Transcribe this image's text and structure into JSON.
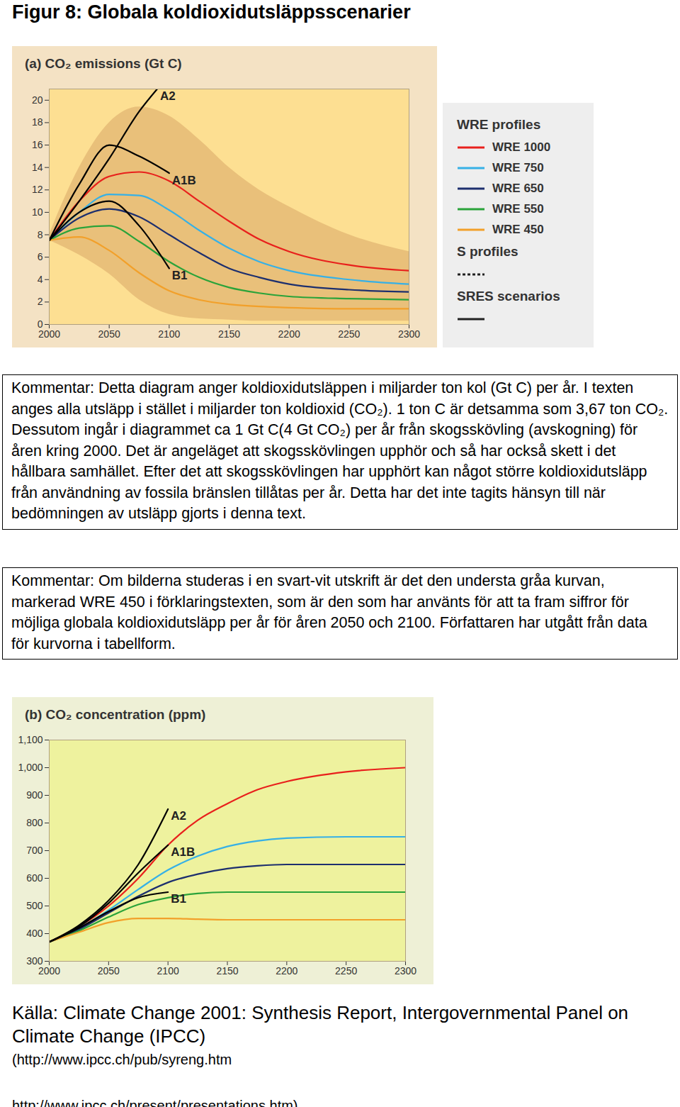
{
  "title": "Figur 8: Globala koldioxidutsläppsscenarier",
  "chart_data": [
    {
      "type": "line",
      "title": "(a) CO₂ emissions (Gt C)",
      "x": [
        2000,
        2025,
        2050,
        2075,
        2100,
        2125,
        2150,
        2175,
        2200,
        2250,
        2300
      ],
      "xlim": [
        2000,
        2300
      ],
      "xticks": [
        2000,
        2050,
        2100,
        2150,
        2200,
        2250,
        2300
      ],
      "ylim": [
        0,
        21
      ],
      "yticks": [
        0,
        2,
        4,
        6,
        8,
        10,
        12,
        14,
        16,
        18,
        20
      ],
      "grid": false,
      "legend": "right",
      "legend_groups": [
        {
          "title": "WRE profiles"
        },
        {
          "title": "S profiles",
          "line_style": "dashed"
        },
        {
          "title": "SRES scenarios",
          "line_style": "solid"
        }
      ],
      "series": [
        {
          "type": "area",
          "color": "#e9c07a",
          "lower": [
            7.5,
            6.2,
            4.5,
            2.2,
            0.9,
            0.5,
            0.4,
            0.3,
            0.3,
            0.3,
            0.3
          ],
          "upper": [
            8.0,
            14.0,
            18.0,
            19.4,
            18.6,
            16.5,
            14.0,
            12.0,
            10.5,
            8.0,
            6.5
          ]
        },
        {
          "name": "WRE 1000",
          "group": "WRE profiles",
          "color": "#e8201c",
          "line_style": "solid",
          "values": [
            7.5,
            11.0,
            13.2,
            13.6,
            12.8,
            11.0,
            9.2,
            7.6,
            6.5,
            5.3,
            4.8
          ]
        },
        {
          "name": "WRE 750",
          "group": "WRE profiles",
          "color": "#36b0e6",
          "line_style": "solid",
          "values": [
            7.5,
            10.0,
            11.6,
            11.5,
            10.2,
            8.4,
            6.8,
            5.6,
            4.8,
            4.0,
            3.6
          ]
        },
        {
          "name": "WRE 650",
          "group": "WRE profiles",
          "color": "#1d2f6e",
          "line_style": "solid",
          "values": [
            7.5,
            9.5,
            10.3,
            9.6,
            8.0,
            6.4,
            5.0,
            4.2,
            3.6,
            3.1,
            2.9
          ]
        },
        {
          "name": "WRE 550",
          "group": "WRE profiles",
          "color": "#2aa33a",
          "line_style": "solid",
          "values": [
            7.5,
            8.6,
            8.8,
            7.4,
            5.6,
            4.2,
            3.3,
            2.8,
            2.5,
            2.3,
            2.2
          ]
        },
        {
          "name": "WRE 450",
          "group": "WRE profiles",
          "color": "#f2a02a",
          "line_style": "solid",
          "values": [
            7.5,
            7.8,
            6.6,
            4.6,
            3.0,
            2.2,
            1.8,
            1.6,
            1.5,
            1.4,
            1.4
          ]
        },
        {
          "name": "A2",
          "group": "SRES scenarios",
          "color": "#000000",
          "line_style": "solid",
          "x": [
            2000,
            2025,
            2050,
            2075,
            2090
          ],
          "values": [
            7.5,
            11.0,
            14.8,
            19.0,
            21.0
          ]
        },
        {
          "name": "A1B",
          "group": "SRES scenarios",
          "color": "#000000",
          "line_style": "solid",
          "x": [
            2000,
            2025,
            2050,
            2075,
            2100
          ],
          "values": [
            7.5,
            12.5,
            16.0,
            15.0,
            13.5
          ]
        },
        {
          "name": "B1",
          "group": "SRES scenarios",
          "color": "#000000",
          "line_style": "solid",
          "x": [
            2000,
            2025,
            2050,
            2075,
            2100
          ],
          "values": [
            7.5,
            10.0,
            11.0,
            8.8,
            5.0
          ]
        }
      ]
    },
    {
      "type": "line",
      "title": "(b) CO₂ concentration (ppm)",
      "x": [
        2000,
        2025,
        2050,
        2075,
        2100,
        2125,
        2150,
        2175,
        2200,
        2250,
        2300
      ],
      "xlim": [
        2000,
        2300
      ],
      "xticks": [
        2000,
        2050,
        2100,
        2150,
        2200,
        2250,
        2300
      ],
      "ylim": [
        300,
        1100
      ],
      "yticks": [
        300,
        400,
        500,
        600,
        700,
        800,
        900,
        {
          "value": 1000,
          "label": "1,000"
        },
        {
          "value": 1100,
          "label": "1,100"
        }
      ],
      "grid": false,
      "series": [
        {
          "name": "WRE 1000",
          "color": "#e8201c",
          "line_style": "solid",
          "values": [
            370,
            425,
            500,
            600,
            720,
            810,
            870,
            920,
            950,
            985,
            1000
          ]
        },
        {
          "name": "WRE 750",
          "color": "#36b0e6",
          "line_style": "solid",
          "values": [
            370,
            420,
            485,
            560,
            630,
            680,
            715,
            735,
            745,
            750,
            750
          ]
        },
        {
          "name": "WRE 650",
          "color": "#1d2f6e",
          "line_style": "solid",
          "values": [
            370,
            415,
            475,
            535,
            585,
            615,
            635,
            645,
            650,
            650,
            650
          ]
        },
        {
          "name": "WRE 550",
          "color": "#2aa33a",
          "line_style": "solid",
          "values": [
            370,
            410,
            460,
            505,
            530,
            545,
            550,
            550,
            550,
            550,
            550
          ]
        },
        {
          "name": "WRE 450",
          "color": "#f2a02a",
          "line_style": "solid",
          "values": [
            370,
            405,
            440,
            455,
            455,
            452,
            450,
            450,
            450,
            450,
            450
          ]
        },
        {
          "name": "A2",
          "group": "SRES scenarios",
          "color": "#000000",
          "line_style": "solid",
          "x": [
            2000,
            2025,
            2050,
            2075,
            2100
          ],
          "values": [
            370,
            430,
            520,
            650,
            850
          ]
        },
        {
          "name": "A1B",
          "group": "SRES scenarios",
          "color": "#000000",
          "line_style": "solid",
          "x": [
            2000,
            2025,
            2050,
            2075,
            2100
          ],
          "values": [
            370,
            425,
            510,
            620,
            720
          ]
        },
        {
          "name": "B1",
          "group": "SRES scenarios",
          "color": "#000000",
          "line_style": "solid",
          "x": [
            2000,
            2025,
            2050,
            2075,
            2100
          ],
          "values": [
            370,
            420,
            480,
            530,
            550
          ]
        }
      ]
    }
  ],
  "comments": [
    "Kommentar: Detta diagram anger koldioxidutsläppen i miljarder ton kol (Gt C) per år. I texten anges alla utsläpp i stället i miljarder ton koldioxid (CO₂). 1 ton C är detsamma som 3,67 ton CO₂. Dessutom ingår i diagrammet ca 1 Gt C(4 Gt CO₂) per år från skogsskövling (avskogning) för åren kring 2000. Det är angeläget att skogsskövlingen upphör och så har också skett i det hållbara samhället. Efter det att skogsskövlingen har upphört kan något större koldioxidutsläpp från användning av fossila bränslen tillåtas per år. Detta har det inte tagits hänsyn till när bedömningen av utsläpp gjorts i denna text.",
    "Kommentar: Om bilderna studeras i en svart-vit utskrift är det den understa gråa kurvan, markerad WRE 450 i förklaringstexten, som är den som har använts för att ta fram siffror för möjliga globala koldioxidutsläpp per år för åren 2050 och 2100. Författaren har utgått från data för kurvorna i tabellform."
  ],
  "source": [
    "Källa: Climate Change 2001: Synthesis Report, Intergovernmental Panel on Climate Change (IPCC)",
    "(http://www.ipcc.ch/pub/syreng.htm",
    "http://www.ipcc.ch/present/presentations.htm)"
  ]
}
